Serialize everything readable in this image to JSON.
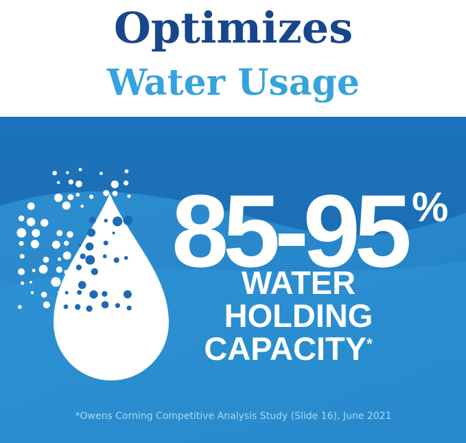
{
  "header": {
    "title": "Optimizes",
    "subtitle": "Water Usage"
  },
  "stat": {
    "value": "85-95",
    "unit": "%",
    "label": [
      "WATER",
      "HOLDING",
      "CAPACITY"
    ],
    "footnote_mark": "*"
  },
  "footnote": "*Owens Corning Competitive Analysis Study (Slide 16), June 2021"
}
